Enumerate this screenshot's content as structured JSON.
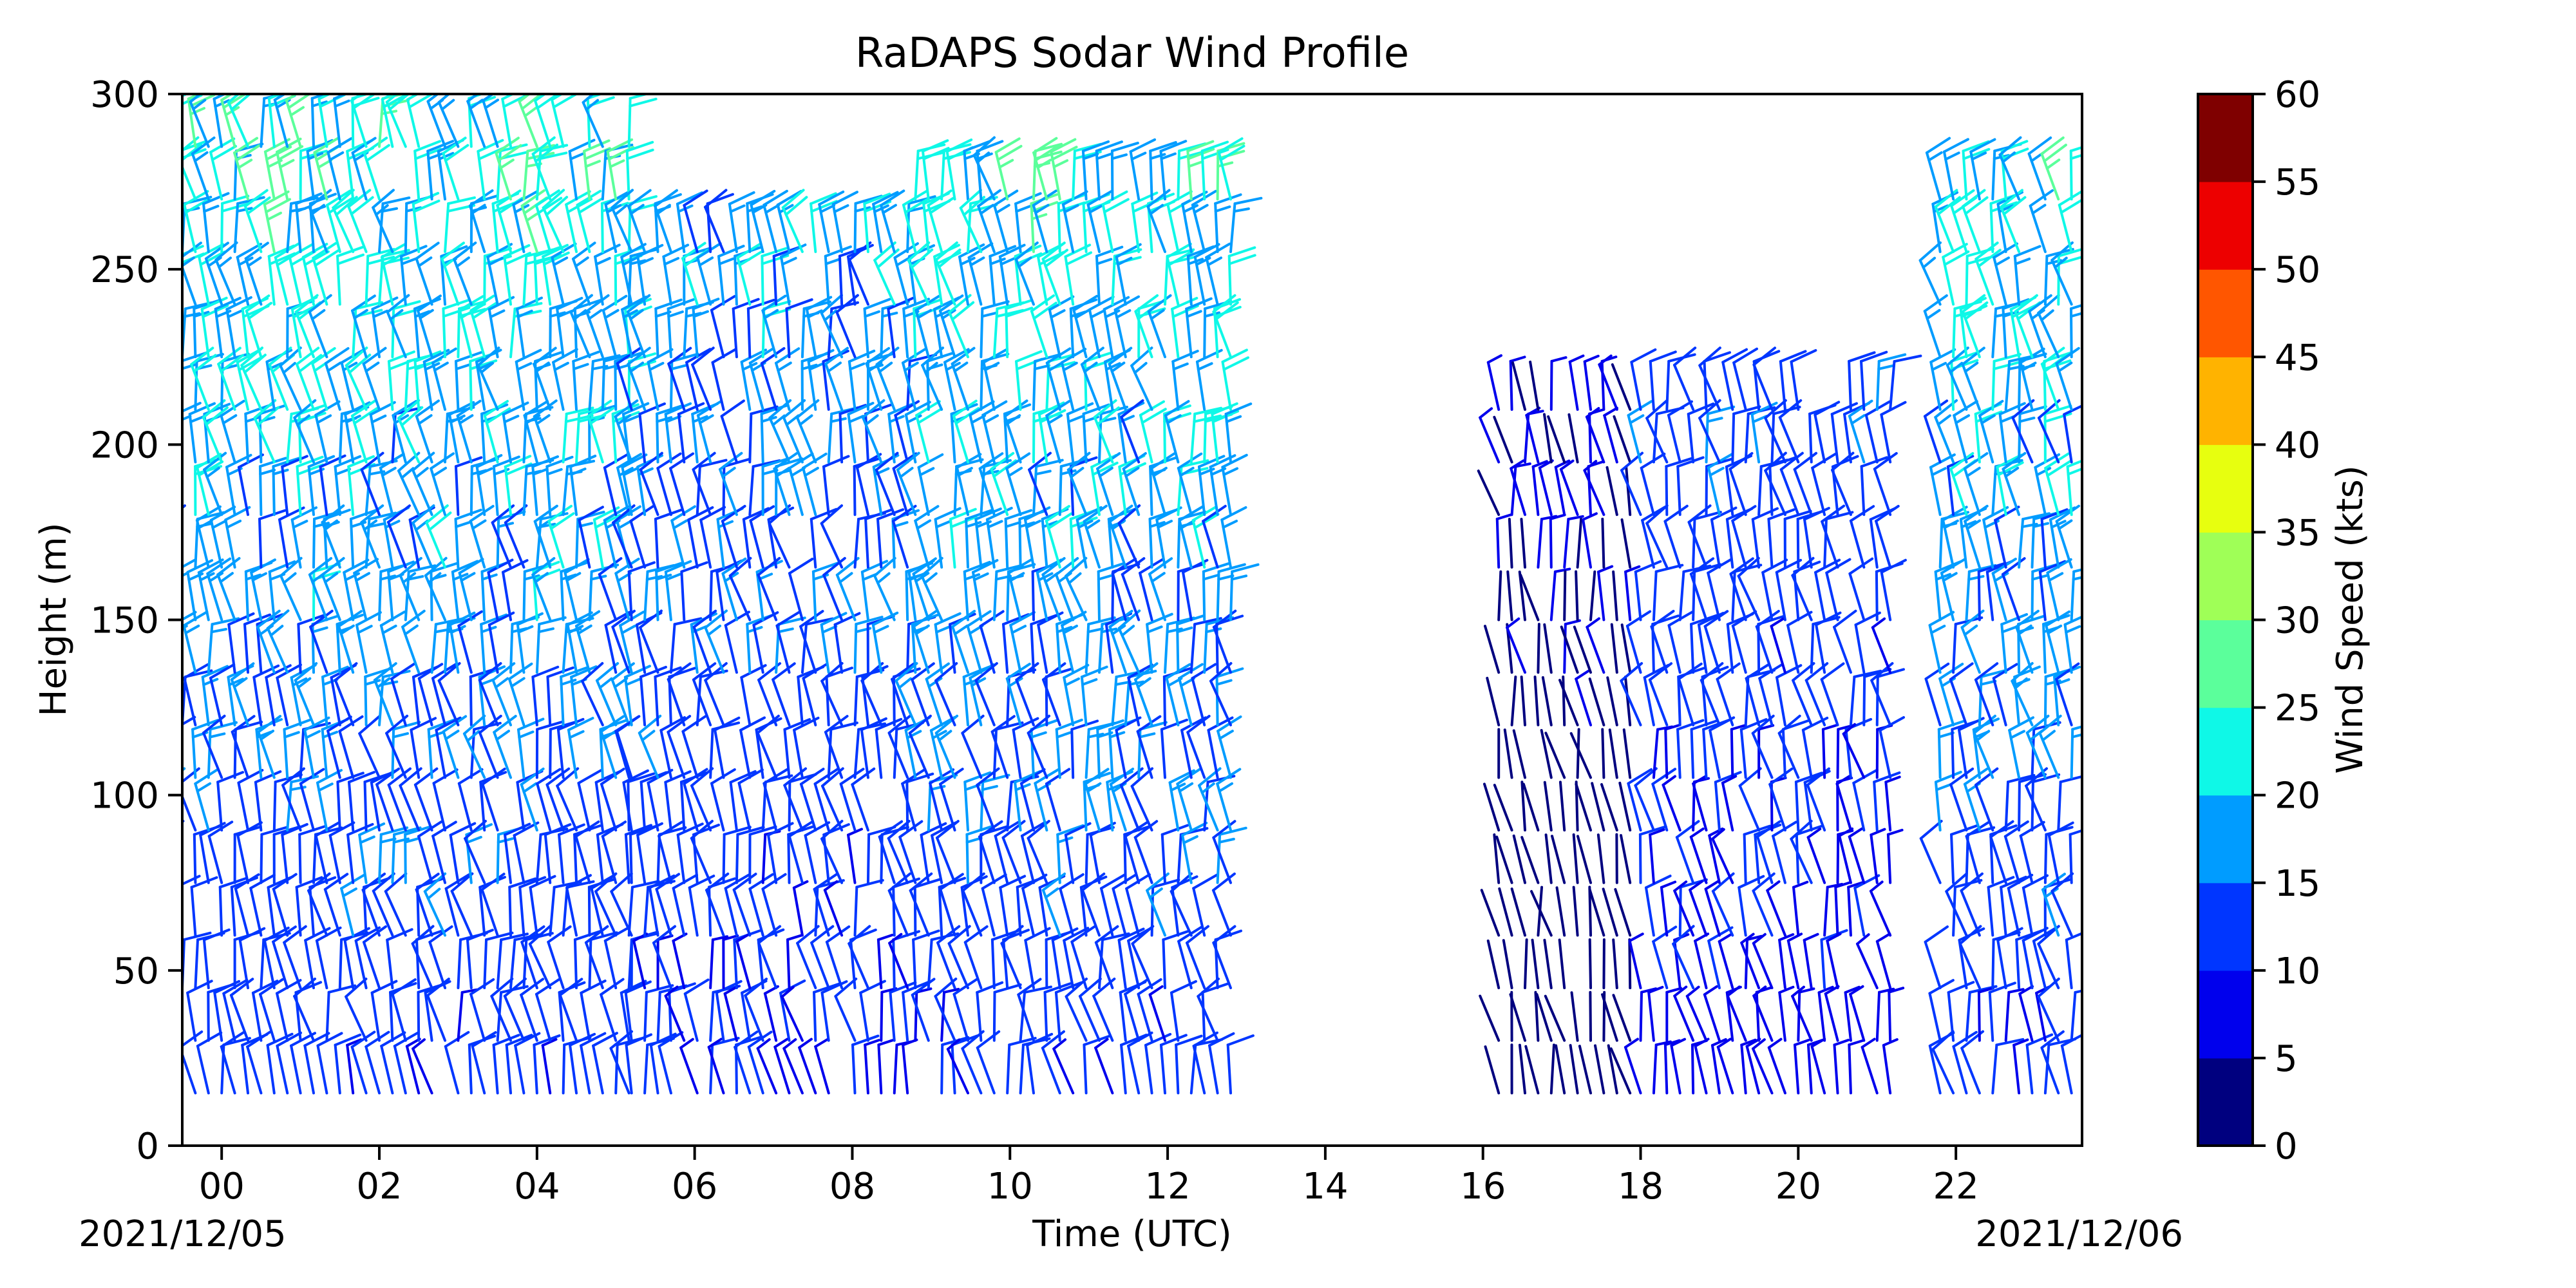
{
  "chart_data": {
    "type": "wind_barbs",
    "title": "RaDAPS Sodar Wind Profile",
    "xlabel": "Time (UTC)",
    "ylabel": "Height (m)",
    "date_start_label": "2021/12/05",
    "date_end_label": "2021/12/06",
    "xlim": [
      -0.5,
      23.6
    ],
    "ylim": [
      0,
      300
    ],
    "x_ticks": [
      0,
      2,
      4,
      6,
      8,
      10,
      12,
      14,
      16,
      18,
      20,
      22
    ],
    "x_tick_labels": [
      "00",
      "02",
      "04",
      "06",
      "08",
      "10",
      "12",
      "14",
      "16",
      "18",
      "20",
      "22"
    ],
    "y_ticks": [
      0,
      50,
      100,
      150,
      200,
      250,
      300
    ],
    "y_tick_labels": [
      "0",
      "50",
      "100",
      "150",
      "200",
      "250",
      "300"
    ],
    "colorbar": {
      "label": "Wind Speed (kts)",
      "bounds": [
        0,
        5,
        10,
        15,
        20,
        25,
        30,
        35,
        40,
        45,
        50,
        55,
        60
      ],
      "tick_labels": [
        "0",
        "5",
        "10",
        "15",
        "20",
        "25",
        "30",
        "35",
        "40",
        "45",
        "50",
        "55",
        "60"
      ],
      "colors": [
        "#00007f",
        "#0000ed",
        "#0036ff",
        "#009cff",
        "#0ff8e7",
        "#5bff9b",
        "#9fff57",
        "#e7ff0f",
        "#ffb300",
        "#ff5600",
        "#ed0000",
        "#7f0000"
      ]
    },
    "wind_barb_periods": [
      {
        "start": -0.5,
        "end": 5.2,
        "height_max": 290,
        "speed_range_kts": [
          5,
          30
        ]
      },
      {
        "start": 5.2,
        "end": 8.8,
        "height_max": 260,
        "speed_range_kts": [
          5,
          25
        ]
      },
      {
        "start": 8.8,
        "end": 12.8,
        "height_max": 270,
        "speed_range_kts": [
          5,
          30
        ]
      },
      {
        "start": 16.2,
        "end": 17.9,
        "height_max": 220,
        "speed_range_kts": [
          0,
          10
        ]
      },
      {
        "start": 18.0,
        "end": 21.2,
        "height_max": 220,
        "speed_range_kts": [
          5,
          20
        ]
      },
      {
        "start": 21.8,
        "end": 23.6,
        "height_max": 280,
        "speed_range_kts": [
          5,
          30
        ]
      }
    ]
  }
}
